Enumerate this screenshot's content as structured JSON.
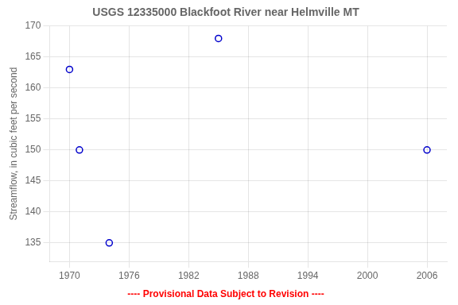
{
  "chart_data": {
    "type": "scatter",
    "title": "USGS 12335000 Blackfoot River near Helmville MT",
    "ylabel": "Streamflow, in cubic feet per second",
    "x": [
      1970,
      1971,
      1974,
      1985,
      2006
    ],
    "values": [
      163,
      150,
      135,
      168,
      150
    ],
    "color": "#0000cc",
    "marker": "circle",
    "xlim": [
      1968,
      2008
    ],
    "ylim": [
      132,
      170
    ],
    "xticks": [
      1970,
      1976,
      1982,
      1988,
      1994,
      2000,
      2006
    ],
    "yticks": [
      135,
      140,
      145,
      150,
      155,
      160,
      165,
      170
    ],
    "grid": true,
    "annotation": {
      "text": "---- Provisional Data Subject to Revision ----",
      "color": "#ff0000"
    }
  }
}
